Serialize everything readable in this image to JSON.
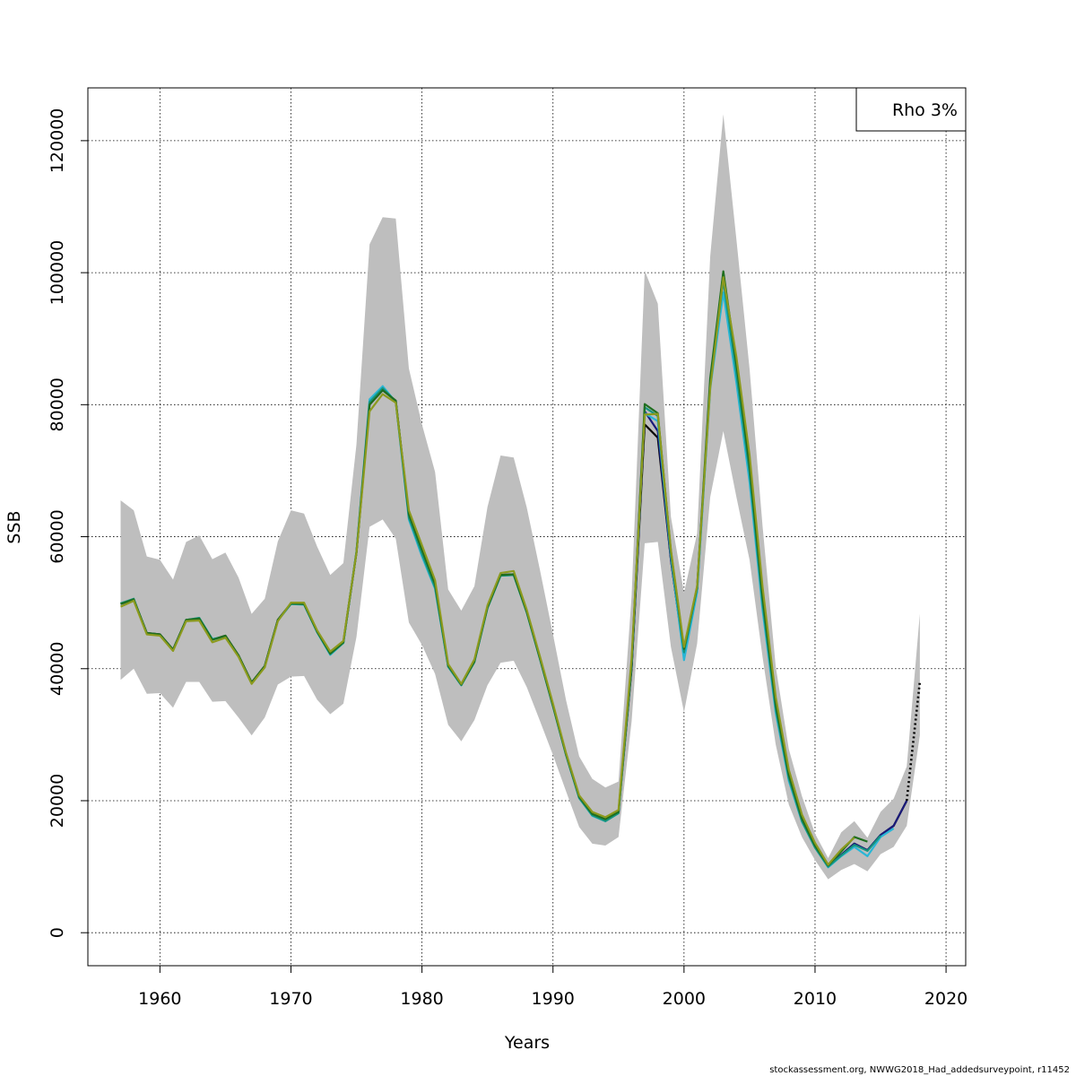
{
  "chart_data": {
    "type": "line",
    "xlabel": "Years",
    "ylabel": "SSB",
    "xlim": [
      1954.5,
      2021.5
    ],
    "ylim": [
      -5000,
      128000
    ],
    "x_ticks": [
      1960,
      1970,
      1980,
      1990,
      2000,
      2010,
      2020
    ],
    "y_ticks": [
      0,
      20000,
      40000,
      60000,
      80000,
      100000,
      120000
    ],
    "grid": true,
    "legend": {
      "position": "top-right",
      "text": "Rho 3%"
    },
    "footer": "stockassessment.org, NWWG2018_Had_addedsurveypoint, r11452",
    "band": {
      "name": "confidence interval",
      "color": "#bebebe",
      "x": [
        1957,
        1958,
        1959,
        1960,
        1961,
        1962,
        1963,
        1964,
        1965,
        1966,
        1967,
        1968,
        1969,
        1970,
        1971,
        1972,
        1973,
        1974,
        1975,
        1976,
        1977,
        1978,
        1979,
        1980,
        1981,
        1982,
        1983,
        1984,
        1985,
        1986,
        1987,
        1988,
        1989,
        1990,
        1991,
        1992,
        1993,
        1994,
        1995,
        1996,
        1997,
        1998,
        1999,
        2000,
        2001,
        2002,
        2003,
        2004,
        2005,
        2006,
        2007,
        2008,
        2009,
        2010,
        2011,
        2012,
        2013,
        2014,
        2015,
        2016,
        2017,
        2018
      ],
      "upper": [
        65500,
        64000,
        57000,
        56500,
        53500,
        59200,
        60200,
        56600,
        57600,
        53800,
        48300,
        50600,
        59300,
        64000,
        63500,
        58500,
        54200,
        56000,
        74000,
        104300,
        108400,
        108200,
        85500,
        77000,
        69800,
        52000,
        48800,
        52500,
        64500,
        72300,
        72000,
        64400,
        55000,
        45200,
        35200,
        26700,
        23300,
        22000,
        22900,
        51000,
        100300,
        95300,
        63000,
        51500,
        60500,
        102500,
        124000,
        105000,
        85500,
        61500,
        40300,
        27800,
        20700,
        15000,
        11300,
        15200,
        16900,
        14400,
        18300,
        20300,
        25200,
        48300
      ],
      "lower": [
        38300,
        40000,
        36200,
        36300,
        34100,
        38000,
        38000,
        35000,
        35100,
        32600,
        29900,
        32600,
        37600,
        38800,
        38900,
        35300,
        33100,
        34700,
        44800,
        61500,
        62600,
        59700,
        47000,
        43600,
        39200,
        31500,
        29000,
        32200,
        37500,
        40900,
        41200,
        37200,
        32100,
        26900,
        21400,
        16000,
        13500,
        13200,
        14500,
        32000,
        59000,
        59200,
        43300,
        33400,
        43800,
        66000,
        76000,
        66000,
        56500,
        41700,
        28500,
        19400,
        14500,
        11000,
        8100,
        9500,
        10400,
        9300,
        11900,
        13000,
        16200,
        29900
      ]
    },
    "series": [
      {
        "name": "base",
        "color": "#000000",
        "dash": "solid",
        "x": [
          1957,
          1958,
          1959,
          1960,
          1961,
          1962,
          1963,
          1964,
          1965,
          1966,
          1967,
          1968,
          1969,
          1970,
          1971,
          1972,
          1973,
          1974,
          1975,
          1976,
          1977,
          1978,
          1979,
          1980,
          1981,
          1982,
          1983,
          1984,
          1985,
          1986,
          1987,
          1988,
          1989,
          1990,
          1991,
          1992,
          1993,
          1994,
          1995,
          1996,
          1997,
          1998,
          1999,
          2000,
          2001,
          2002,
          2003,
          2004,
          2005,
          2006,
          2007,
          2008,
          2009,
          2010,
          2011,
          2012,
          2013,
          2014,
          2015,
          2016,
          2017
        ],
        "values": [
          49800,
          50500,
          45400,
          45200,
          42900,
          47400,
          47600,
          44400,
          45000,
          42000,
          37900,
          40400,
          47400,
          49900,
          49800,
          45600,
          42300,
          44000,
          57600,
          80000,
          82200,
          80600,
          63200,
          57800,
          52600,
          40400,
          37600,
          41100,
          49300,
          54200,
          54300,
          48600,
          41600,
          34400,
          27000,
          20500,
          17900,
          17100,
          18200,
          40000,
          77000,
          75000,
          56500,
          42000,
          52000,
          83000,
          100000,
          85000,
          70000,
          50000,
          34000,
          23500,
          17000,
          13000,
          10000,
          11800,
          13500,
          12500,
          14800,
          16200,
          20000
        ]
      },
      {
        "name": "projection",
        "color": "#000000",
        "dash": "dotted",
        "x": [
          2017,
          2018
        ],
        "values": [
          20000,
          38000
        ]
      },
      {
        "name": "dark-blue",
        "color": "#1a1a7a",
        "dash": "solid",
        "x": [
          1996,
          1997,
          1998,
          1999,
          2000,
          2001,
          2002,
          2003,
          2004,
          2005,
          2006,
          2007,
          2008,
          2009,
          2010,
          2011,
          2012,
          2013,
          2014,
          2015,
          2016,
          2017
        ],
        "values": [
          40000,
          79000,
          76000,
          56500,
          42200,
          52000,
          83000,
          99500,
          85000,
          70000,
          50000,
          34000,
          23500,
          17000,
          13000,
          10000,
          11800,
          13500,
          12500,
          14800,
          16200,
          20000
        ]
      },
      {
        "name": "cyan",
        "color": "#29b6d6",
        "dash": "solid",
        "x": [
          1957,
          1958,
          1959,
          1960,
          1961,
          1962,
          1963,
          1964,
          1965,
          1966,
          1967,
          1968,
          1969,
          1970,
          1971,
          1972,
          1973,
          1974,
          1975,
          1976,
          1977,
          1978,
          1979,
          1980,
          1981,
          1982,
          1983,
          1984,
          1985,
          1986,
          1987,
          1988,
          1989,
          1990,
          1991,
          1992,
          1993,
          1994,
          1995,
          1996,
          1997,
          1998,
          1999,
          2000,
          2001,
          2002,
          2003,
          2004,
          2005,
          2006,
          2007,
          2008,
          2009,
          2010,
          2011,
          2012,
          2013,
          2014,
          2015,
          2016
        ],
        "values": [
          49900,
          50500,
          45300,
          45100,
          42800,
          47300,
          47700,
          44500,
          44900,
          41900,
          37800,
          40300,
          47300,
          49800,
          49700,
          45500,
          42100,
          43900,
          57800,
          80800,
          82800,
          80400,
          62600,
          57000,
          52100,
          40300,
          37500,
          41000,
          49200,
          54100,
          54200,
          48500,
          41500,
          34300,
          26900,
          20400,
          17700,
          16900,
          18100,
          40500,
          78700,
          77500,
          57000,
          41300,
          51600,
          82400,
          97000,
          83300,
          68300,
          48800,
          33300,
          23000,
          16800,
          12900,
          9900,
          11600,
          13000,
          11600,
          14500,
          15800
        ]
      },
      {
        "name": "teal",
        "color": "#16957f",
        "dash": "solid",
        "x": [
          1957,
          1958,
          1959,
          1960,
          1961,
          1962,
          1963,
          1964,
          1965,
          1966,
          1967,
          1968,
          1969,
          1970,
          1971,
          1972,
          1973,
          1974,
          1975,
          1976,
          1977,
          1978,
          1979,
          1980,
          1981,
          1982,
          1983,
          1984,
          1985,
          1986,
          1987,
          1988,
          1989,
          1990,
          1991,
          1992,
          1993,
          1994,
          1995,
          1996,
          1997,
          1998,
          1999,
          2000,
          2001,
          2002,
          2003,
          2004,
          2005,
          2006,
          2007,
          2008,
          2009,
          2010,
          2011,
          2012,
          2013,
          2014,
          2015
        ],
        "values": [
          49900,
          50600,
          45300,
          45100,
          42800,
          47400,
          47700,
          44400,
          44900,
          42000,
          37800,
          40300,
          47300,
          49800,
          49800,
          45600,
          42200,
          43900,
          57700,
          80400,
          82500,
          80500,
          62900,
          57400,
          52300,
          40300,
          37500,
          41000,
          49200,
          54100,
          54200,
          48500,
          41500,
          34300,
          26900,
          20400,
          17800,
          16900,
          18100,
          40600,
          79600,
          78300,
          57400,
          42500,
          52200,
          83300,
          98800,
          84700,
          69700,
          49800,
          33900,
          23400,
          16900,
          12900,
          10000,
          11700,
          13300,
          12400,
          14700
        ]
      },
      {
        "name": "dark-green",
        "color": "#1f6e1f",
        "dash": "solid",
        "x": [
          1957,
          1958,
          1959,
          1960,
          1961,
          1962,
          1963,
          1964,
          1965,
          1966,
          1967,
          1968,
          1969,
          1970,
          1971,
          1972,
          1973,
          1974,
          1975,
          1976,
          1977,
          1978,
          1979,
          1980,
          1981,
          1982,
          1983,
          1984,
          1985,
          1986,
          1987,
          1988,
          1989,
          1990,
          1991,
          1992,
          1993,
          1994,
          1995,
          1996,
          1997,
          1998,
          1999,
          2000,
          2001,
          2002,
          2003,
          2004,
          2005,
          2006,
          2007,
          2008,
          2009,
          2010,
          2011,
          2012,
          2013,
          2014
        ],
        "values": [
          49800,
          50500,
          45400,
          45200,
          42900,
          47400,
          47600,
          44400,
          45000,
          42000,
          37900,
          40400,
          47400,
          49900,
          49800,
          45600,
          42300,
          44000,
          57600,
          80000,
          82200,
          80600,
          63400,
          58000,
          52800,
          40500,
          37600,
          41100,
          49300,
          54200,
          54300,
          48600,
          41600,
          34400,
          27000,
          20600,
          18000,
          17200,
          18300,
          40800,
          80100,
          78700,
          57800,
          43000,
          52400,
          84000,
          100200,
          86200,
          70800,
          50800,
          34600,
          23900,
          17300,
          13200,
          10200,
          12300,
          14500,
          13800
        ]
      },
      {
        "name": "olive",
        "color": "#8c9a1e",
        "dash": "solid",
        "x": [
          1957,
          1958,
          1959,
          1960,
          1961,
          1962,
          1963,
          1964,
          1965,
          1966,
          1967,
          1968,
          1969,
          1970,
          1971,
          1972,
          1973,
          1974,
          1975,
          1976,
          1977,
          1978,
          1979,
          1980,
          1981,
          1982,
          1983,
          1984,
          1985,
          1986,
          1987,
          1988,
          1989,
          1990,
          1991,
          1992,
          1993,
          1994,
          1995,
          1996,
          1997,
          1998,
          1999,
          2000,
          2001,
          2002,
          2003,
          2004,
          2005,
          2006,
          2007,
          2008,
          2009,
          2010,
          2011,
          2012,
          2013
        ],
        "values": [
          49400,
          50300,
          45200,
          45000,
          42700,
          47200,
          47300,
          44000,
          44700,
          41800,
          37700,
          40200,
          47200,
          50000,
          50000,
          45800,
          42600,
          44200,
          57600,
          79000,
          81600,
          80300,
          64000,
          58700,
          53400,
          40700,
          37700,
          41400,
          49600,
          54500,
          54800,
          48900,
          41900,
          34700,
          27200,
          20800,
          18300,
          17500,
          18600,
          41500,
          78500,
          78600,
          58000,
          43300,
          52500,
          82500,
          99300,
          87200,
          72400,
          52300,
          35700,
          24700,
          17900,
          13600,
          10300,
          12600,
          14400
        ]
      }
    ]
  }
}
